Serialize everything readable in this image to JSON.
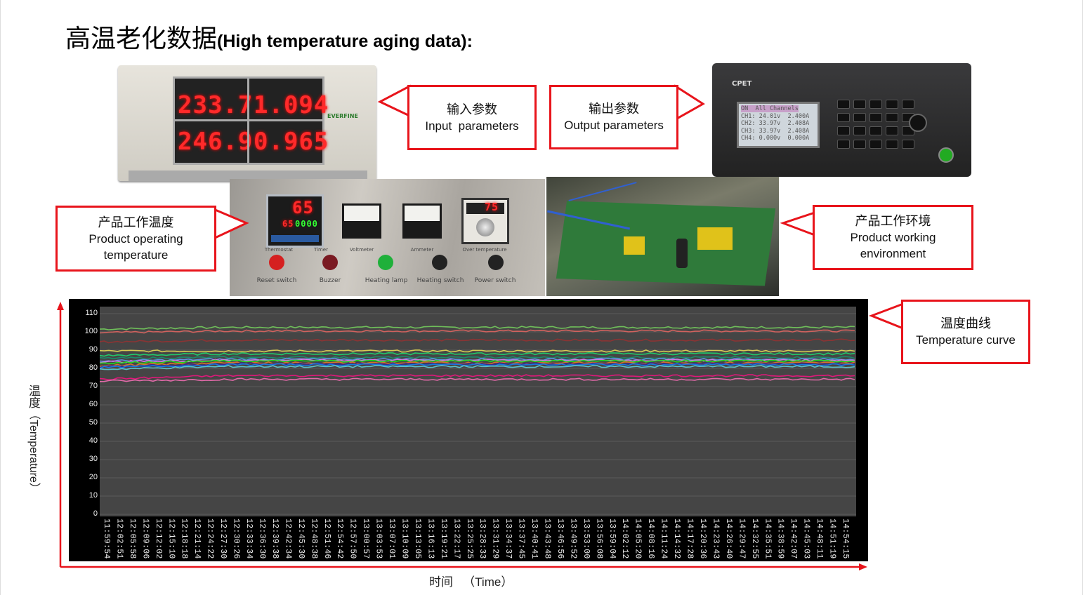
{
  "title": {
    "zh": "高温老化数据",
    "en": "(High temperature aging data):"
  },
  "callouts": {
    "input": {
      "zh": "输入参数",
      "en": "Input  parameters"
    },
    "output": {
      "zh": "输出参数",
      "en": "Output parameters"
    },
    "temp": {
      "zh": "产品工作温度",
      "en1": "Product operating",
      "en2": "temperature"
    },
    "env": {
      "zh": "产品工作环境",
      "en1": "Product working",
      "en2": "environment"
    },
    "curve": {
      "zh": "温度曲线",
      "en": "Temperature curve"
    }
  },
  "power_meter": {
    "readings": [
      "233.7",
      "1.094",
      "246.9",
      "0.965"
    ],
    "brand": "EVERFINE"
  },
  "electronic_load": {
    "logo": "CPET",
    "lcd": [
      "ON  All Channels",
      "CH1: 24.01v  2.400A",
      "CH2: 33.97v  2.408A",
      "CH3: 33.97v  2.408A",
      "CH4: 0.000v  0.000A"
    ]
  },
  "control_box": {
    "thermostat_pv": "65",
    "thermostat_sv": "65",
    "timer": "0000",
    "over_temp": "75",
    "labels": [
      "Thermostat",
      "Timer",
      "Voltmeter",
      "Ammeter",
      "Over temperature",
      "Reset switch",
      "Buzzer",
      "Heating lamp",
      "Heating switch",
      "Power switch"
    ]
  },
  "colors": {
    "accent_red": "#e8141b",
    "chart_bg": "#000000",
    "plot_bg": "#454545"
  },
  "axis_labels": {
    "y_zh": "温度",
    "y_en": "（Temperature）",
    "x_zh": "时间",
    "x_en": "（Time）"
  },
  "chart_data": {
    "type": "line",
    "ylim": [
      0,
      110
    ],
    "yticks": [
      "110",
      "100",
      "90",
      "80",
      "70",
      "60",
      "50",
      "40",
      "30",
      "20",
      "10",
      "0"
    ],
    "x": [
      "11:59:54",
      "12:02:51",
      "12:05:58",
      "12:09:06",
      "12:12:02",
      "12:15:10",
      "12:18:18",
      "12:21:14",
      "12:24:22",
      "12:27:30",
      "12:30:26",
      "12:33:34",
      "12:36:30",
      "12:39:38",
      "12:42:34",
      "12:45:30",
      "12:48:38",
      "12:51:46",
      "12:54:42",
      "12:57:50",
      "13:00:57",
      "13:03:53",
      "13:07:01",
      "13:10:09",
      "13:13:05",
      "13:16:13",
      "13:19:21",
      "13:22:17",
      "13:25:25",
      "13:28:33",
      "13:31:29",
      "13:34:37",
      "13:37:45",
      "13:40:41",
      "13:43:48",
      "13:46:56",
      "13:49:52",
      "13:53:00",
      "13:56:08",
      "13:59:04",
      "14:02:12",
      "14:05:20",
      "14:08:16",
      "14:11:24",
      "14:14:32",
      "14:17:28",
      "14:20:36",
      "14:23:43",
      "14:26:40",
      "14:29:47",
      "14:32:55",
      "14:35:51",
      "14:38:59",
      "14:42:07",
      "14:45:03",
      "14:48:11",
      "14:51:19",
      "14:54:15"
    ],
    "grid": true,
    "series": [
      {
        "color": "#6fbf5a",
        "start": 101.5,
        "level": 102.5
      },
      {
        "color": "#d0625e",
        "start": 99.5,
        "level": 100.5
      },
      {
        "color": "#8a3434",
        "start": 94.5,
        "level": 95.5
      },
      {
        "color": "#d6cc54",
        "start": 89.5,
        "level": 89.5
      },
      {
        "color": "#21c96a",
        "start": 87,
        "level": 88
      },
      {
        "color": "#1a8a6a",
        "start": 85.5,
        "level": 86
      },
      {
        "color": "#5f8fe0",
        "start": 84,
        "level": 85
      },
      {
        "color": "#cf7be0",
        "start": 83.5,
        "level": 84.5
      },
      {
        "color": "#23d61f",
        "start": 83,
        "level": 84
      },
      {
        "color": "#d9702a",
        "start": 81.5,
        "level": 83
      },
      {
        "color": "#3a2a8a",
        "start": 81,
        "level": 82.5
      },
      {
        "color": "#1778e0",
        "start": 80.5,
        "level": 82
      },
      {
        "color": "#5bc0c7",
        "start": 79.5,
        "level": 81
      },
      {
        "color": "#e0187a",
        "start": 74,
        "level": 76
      },
      {
        "color": "#e06aa8",
        "start": 73,
        "level": 74
      }
    ]
  }
}
